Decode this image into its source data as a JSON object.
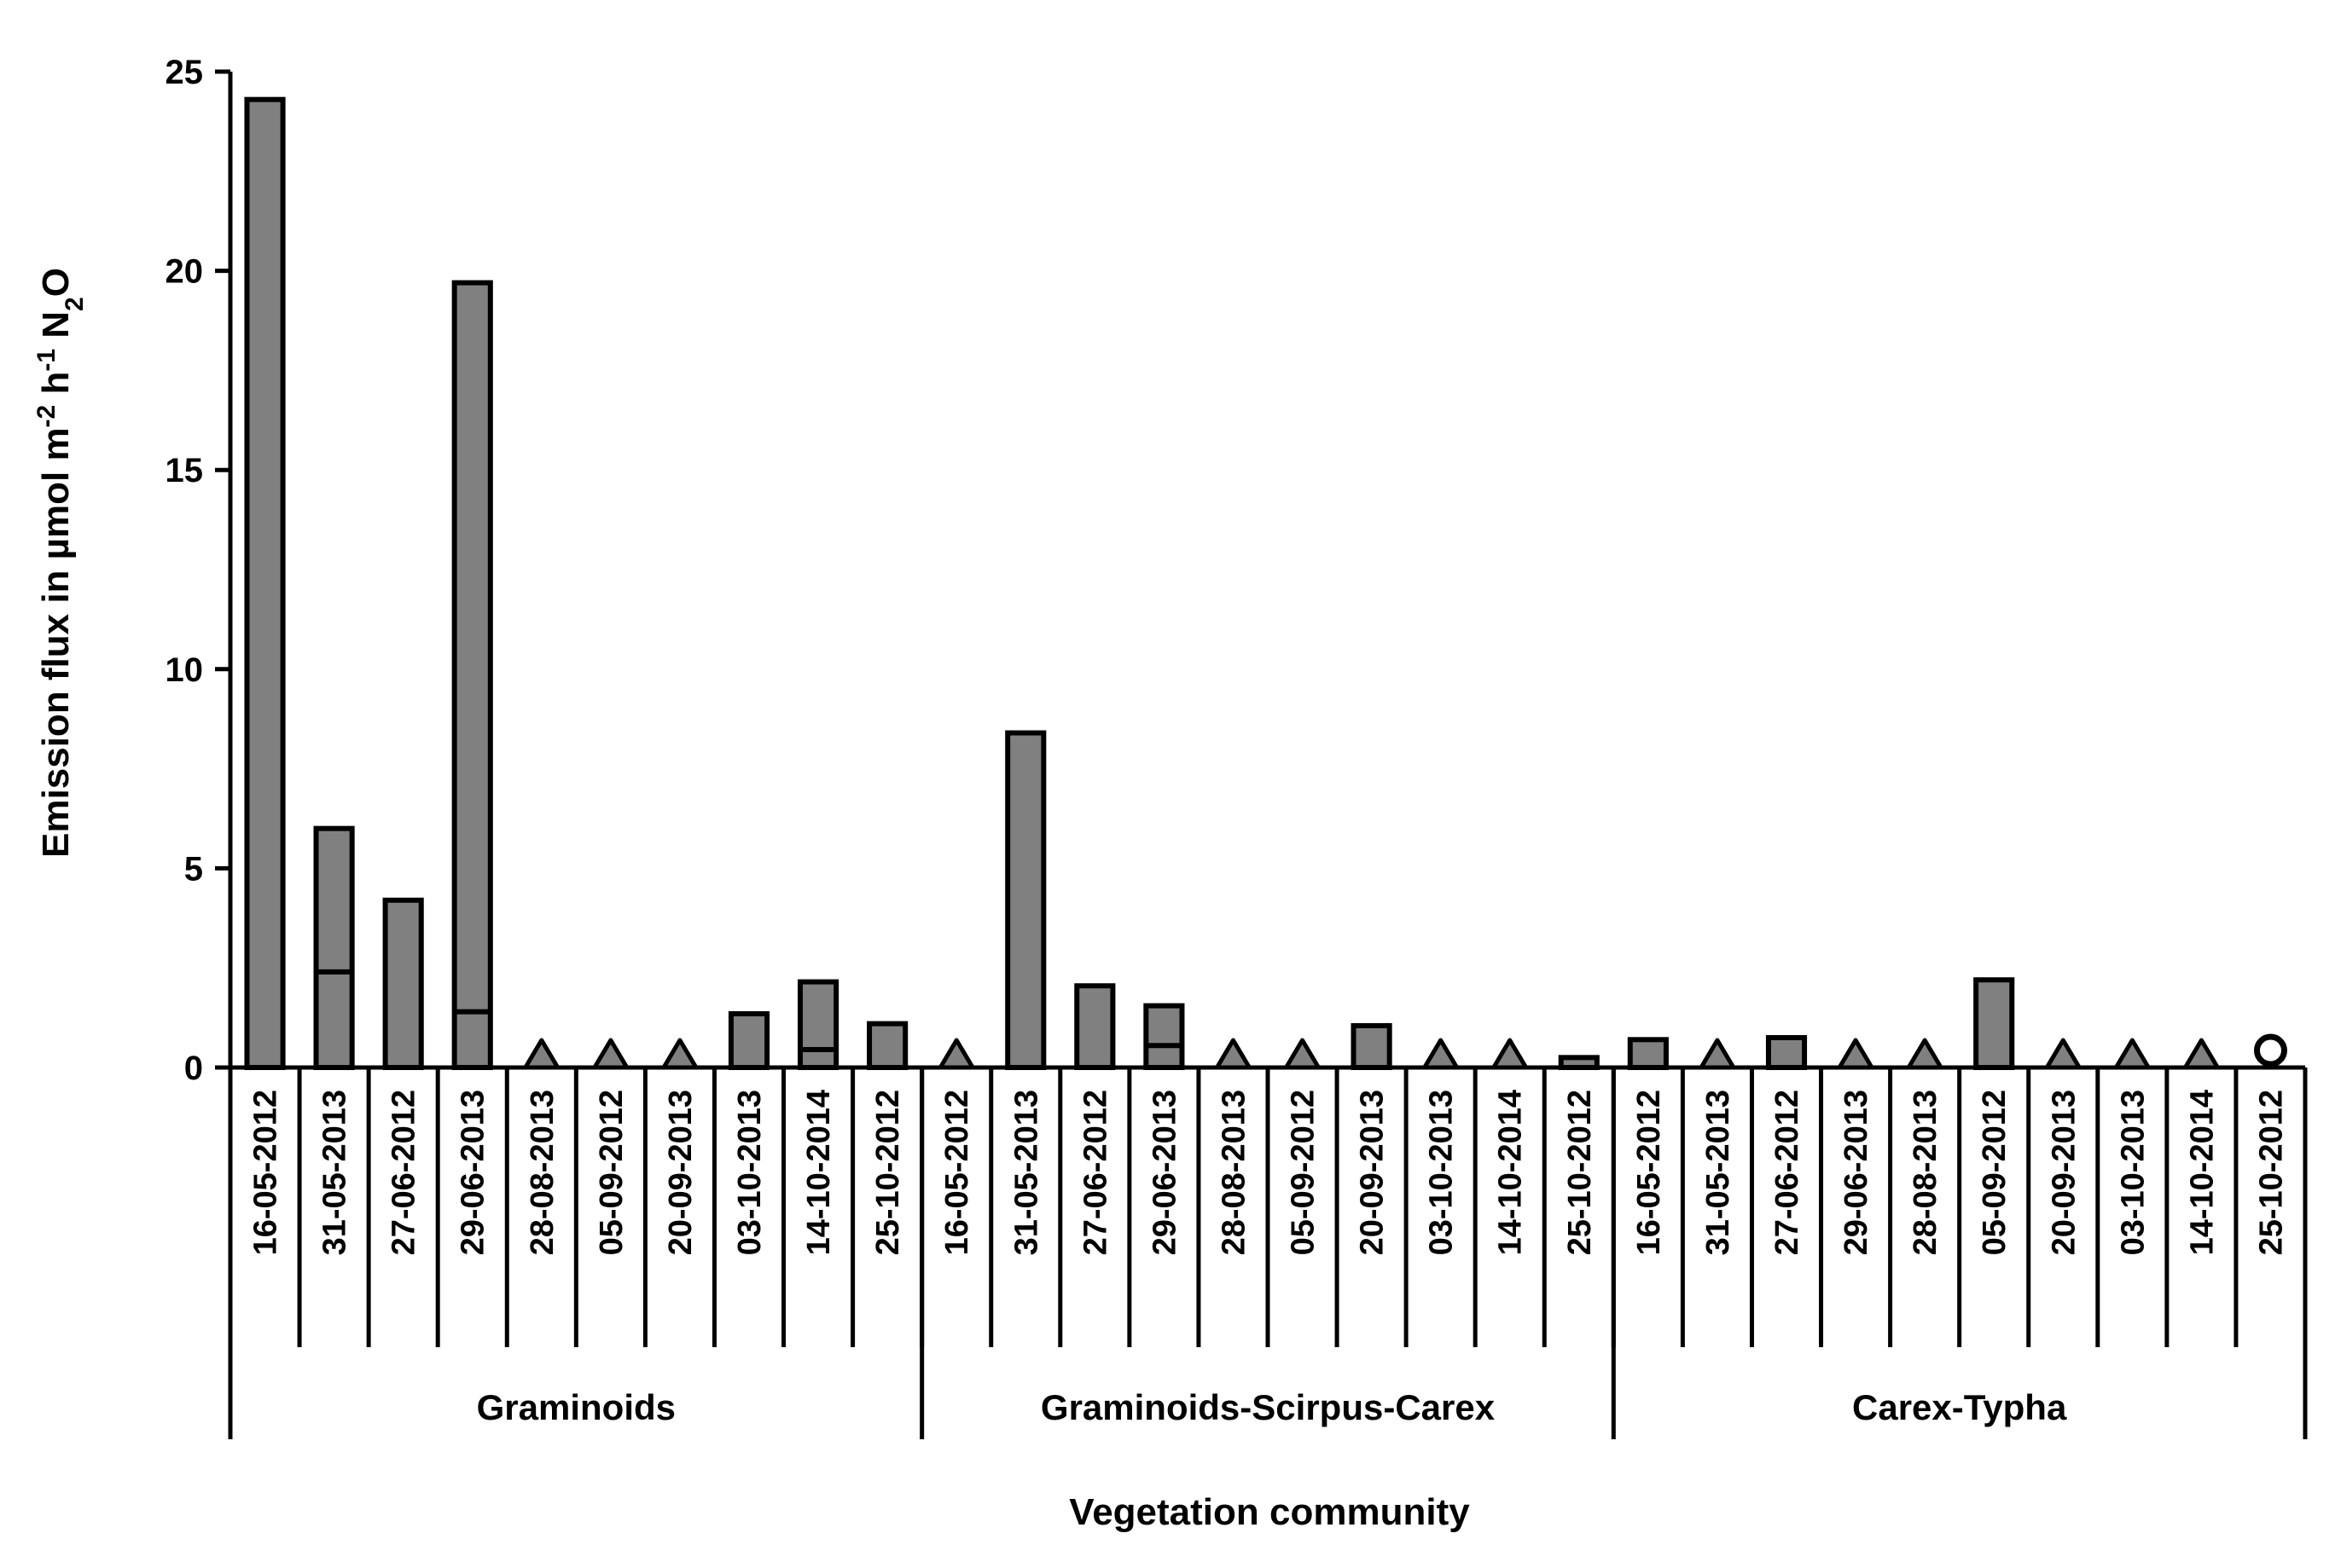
{
  "chart_data": {
    "type": "bar",
    "ylabel": "Emission flux in µmol m-2 h-1 N2O",
    "ylabel_parts": {
      "prefix": "Emission flux in µmol m",
      "exp1": "-2",
      "mid": " h",
      "exp2": "-1",
      "mid2": " N",
      "sub": "2",
      "end": "O"
    },
    "xlabel": "Vegetation community",
    "ylim": [
      0,
      25
    ],
    "yticks": [
      "0",
      "5",
      "10",
      "15",
      "20",
      "25"
    ],
    "grid": false,
    "bar_color": "#808080",
    "groups": [
      {
        "name": "Graminoids",
        "dates": [
          "16-05-2012",
          "31-05-2013",
          "27-06-2012",
          "29-06-2013",
          "28-08-2013",
          "05-09-2012",
          "20-09-2013",
          "03-10-2013",
          "14-10-2014",
          "25-10-2012"
        ],
        "values": [
          24.3,
          6.0,
          4.2,
          19.7,
          null,
          null,
          null,
          1.35,
          2.15,
          1.1
        ],
        "inner_values": [
          null,
          2.4,
          null,
          1.4,
          null,
          null,
          null,
          null,
          0.45,
          null
        ],
        "markers": [
          null,
          null,
          null,
          null,
          "triangle",
          "triangle",
          "triangle",
          null,
          null,
          null
        ]
      },
      {
        "name": "Graminoids-Scirpus-Carex",
        "dates": [
          "16-05-2012",
          "31-05-2013",
          "27-06-2012",
          "29-06-2013",
          "28-08-2013",
          "05-09-2012",
          "20-09-2013",
          "03-10-2013",
          "14-10-2014",
          "25-10-2012"
        ],
        "values": [
          null,
          8.4,
          2.05,
          1.55,
          null,
          null,
          1.05,
          null,
          null,
          0.25
        ],
        "inner_values": [
          null,
          null,
          null,
          0.55,
          null,
          null,
          null,
          null,
          null,
          null
        ],
        "markers": [
          "triangle",
          null,
          null,
          null,
          "triangle",
          "triangle",
          null,
          "triangle",
          "triangle",
          null
        ]
      },
      {
        "name": "Carex-Typha",
        "dates": [
          "16-05-2012",
          "31-05-2013",
          "27-06-2012",
          "29-06-2013",
          "28-08-2013",
          "05-09-2012",
          "20-09-2013",
          "03-10-2013",
          "14-10-2014",
          "25-10-2012"
        ],
        "values": [
          0.7,
          null,
          0.75,
          null,
          null,
          2.2,
          null,
          null,
          null,
          null
        ],
        "inner_values": [
          null,
          null,
          null,
          null,
          null,
          null,
          null,
          null,
          null,
          null
        ],
        "markers": [
          null,
          "triangle",
          null,
          "triangle",
          "triangle",
          null,
          "triangle",
          "triangle",
          "triangle",
          "circle"
        ]
      }
    ]
  }
}
